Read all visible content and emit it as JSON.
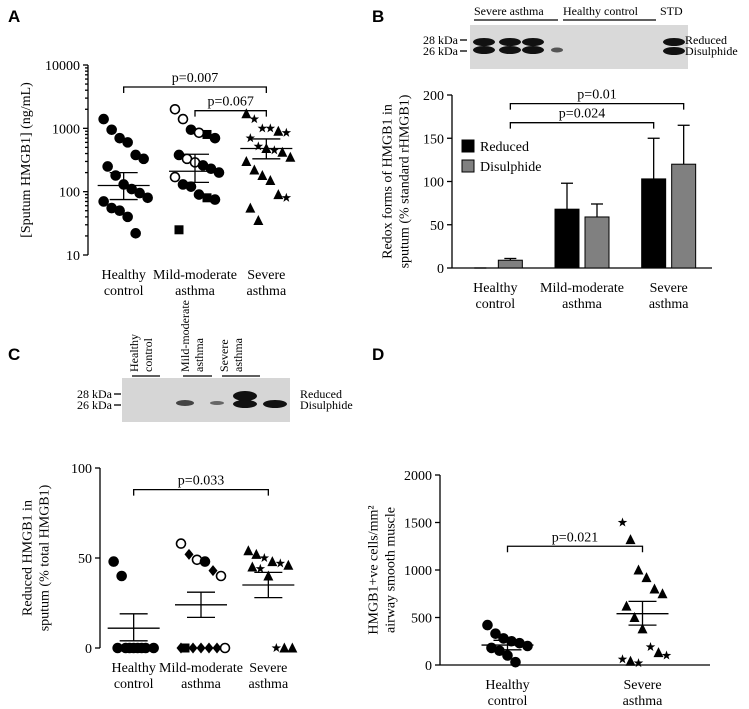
{
  "chart_data": [
    {
      "panel": "A",
      "type": "dot",
      "log_y": true,
      "ylabel": [
        "[Sputum HMGB1] (ng/mL)"
      ],
      "categories": [
        "Healthy control",
        "Mild-moderate asthma",
        "Severe asthma"
      ],
      "ylim": [
        10,
        10000
      ],
      "yticks": [
        10,
        100,
        1000,
        10000
      ],
      "groups": [
        {
          "values": [
            1400,
            950,
            700,
            600,
            380,
            330,
            250,
            180,
            130,
            110,
            95,
            80,
            70,
            55,
            50,
            40,
            22
          ],
          "marker": "circle",
          "mean": 125,
          "sem": [
            75,
            200
          ]
        },
        {
          "values": [
            2000,
            1400,
            950,
            850,
            800,
            700,
            380,
            330,
            290,
            260,
            230,
            200,
            170,
            130,
            120,
            90,
            80,
            75,
            25
          ],
          "markers": [
            "open-circle",
            "open-circle",
            "circle",
            "open-circle",
            "square",
            "circle",
            "circle",
            "open-circle",
            "open-circle",
            "circle",
            "circle",
            "circle",
            "open-circle",
            "circle",
            "circle",
            "circle",
            "square",
            "circle",
            "square"
          ],
          "mean": 210,
          "sem": [
            140,
            390
          ]
        },
        {
          "values": [
            1700,
            1400,
            1000,
            1000,
            900,
            850,
            700,
            520,
            480,
            450,
            420,
            350,
            300,
            220,
            180,
            150,
            90,
            80,
            55,
            35
          ],
          "markers": [
            "triangle",
            "star",
            "star",
            "star",
            "triangle",
            "star",
            "star",
            "star",
            "triangle",
            "star",
            "triangle",
            "triangle",
            "triangle",
            "triangle",
            "triangle",
            "triangle",
            "triangle",
            "star",
            "triangle",
            "triangle"
          ],
          "mean": 480,
          "sem": [
            330,
            680
          ]
        }
      ],
      "annotations": [
        {
          "text": "p=0.007",
          "from": 0,
          "to": 2,
          "y": 4500
        },
        {
          "text": "p=0.067",
          "from": 1,
          "to": 2,
          "y": 1900
        }
      ]
    },
    {
      "panel": "B",
      "type": "bar",
      "ylabel": [
        "Redox forms of HMGB1 in",
        "sputum (% standard rHMGB1)"
      ],
      "categories": [
        "Healthy control",
        "Mild-moderate asthma",
        "Severe asthma"
      ],
      "ylim": [
        0,
        200
      ],
      "yticks": [
        0,
        50,
        100,
        150,
        200
      ],
      "legend": "upper left",
      "bottom_axis": true,
      "series": [
        {
          "name": "Reduced",
          "color": "#000000",
          "values": [
            0,
            68,
            103
          ],
          "errors": [
            0,
            30,
            47
          ]
        },
        {
          "name": "Disulphide",
          "color": "#808080",
          "values": [
            9,
            59,
            120
          ],
          "errors": [
            2,
            15,
            45
          ]
        }
      ],
      "annotations": [
        {
          "text": "p=0.024",
          "from": [
            0,
            1
          ],
          "to": [
            2,
            0
          ],
          "y": 168
        },
        {
          "text": "p=0.01",
          "from": [
            0,
            1
          ],
          "to": [
            2,
            1
          ],
          "y": 190
        }
      ],
      "blot": {
        "lanes": [
          "Severe asthma",
          "Healthy control",
          "STD"
        ],
        "markers": [
          "28 kDa",
          "26 kDa"
        ],
        "bands": [
          "Reduced",
          "Disulphide"
        ]
      }
    },
    {
      "panel": "C",
      "type": "dot",
      "ylabel": [
        "Reduced HMGB1 in",
        "sputum (% total HMGB1)"
      ],
      "categories": [
        "Healthy control",
        "Mild-moderate asthma",
        "Severe asthma"
      ],
      "ylim": [
        0,
        100
      ],
      "yticks": [
        0,
        50,
        100
      ],
      "groups": [
        {
          "values": [
            48,
            40,
            0,
            0,
            0,
            0,
            0,
            0,
            0,
            0
          ],
          "marker": "circle",
          "mean": 11,
          "sem": [
            4,
            19
          ]
        },
        {
          "values": [
            58,
            52,
            49,
            48,
            43,
            40,
            0,
            0,
            0,
            0,
            0,
            0,
            0
          ],
          "markers": [
            "open-circle",
            "diamond",
            "open-circle",
            "circle",
            "diamond",
            "open-circle",
            "square",
            "diamond",
            "diamond",
            "diamond",
            "diamond",
            "open-circle",
            "diamond"
          ],
          "mean": 24,
          "sem": [
            17,
            31
          ]
        },
        {
          "values": [
            54,
            52,
            50,
            48,
            47,
            46,
            45,
            44,
            40,
            0,
            0,
            0
          ],
          "markers": [
            "triangle",
            "triangle",
            "star",
            "triangle",
            "star",
            "triangle",
            "triangle",
            "star",
            "triangle",
            "star",
            "triangle",
            "triangle"
          ],
          "mean": 35,
          "sem": [
            28,
            42
          ]
        }
      ],
      "annotations": [
        {
          "text": "p=0.033",
          "from": 0,
          "to": 2,
          "y": 88
        }
      ],
      "blot": {
        "lanes": [
          "Healthy control",
          "Mild-moderate asthma",
          "Severe asthma"
        ],
        "markers": [
          "28 kDa",
          "26 kDa"
        ],
        "bands": [
          "Reduced",
          "Disulphide"
        ]
      }
    },
    {
      "panel": "D",
      "type": "dot",
      "ylabel": [
        "HMGB1+ve cells/mm²",
        "airway smooth muscle"
      ],
      "categories": [
        "Healthy control",
        "Severe asthma"
      ],
      "ylim": [
        0,
        2000
      ],
      "yticks": [
        0,
        500,
        1000,
        1500,
        2000
      ],
      "bottom_axis": true,
      "groups": [
        {
          "values": [
            420,
            330,
            280,
            250,
            230,
            200,
            180,
            150,
            100,
            30
          ],
          "marker": "circle",
          "mean": 210,
          "sem": [
            160,
            260
          ]
        },
        {
          "values": [
            1500,
            1320,
            1000,
            920,
            800,
            750,
            620,
            500,
            380,
            190,
            130,
            100,
            60,
            40,
            20
          ],
          "markers": [
            "star",
            "triangle",
            "triangle",
            "triangle",
            "triangle",
            "triangle",
            "triangle",
            "triangle",
            "triangle",
            "star",
            "triangle",
            "star",
            "star",
            "triangle",
            "star"
          ],
          "mean": 540,
          "sem": [
            420,
            670
          ]
        }
      ],
      "annotations": [
        {
          "text": "p=0.021",
          "from": 0,
          "to": 1,
          "y": 1250
        }
      ]
    }
  ]
}
